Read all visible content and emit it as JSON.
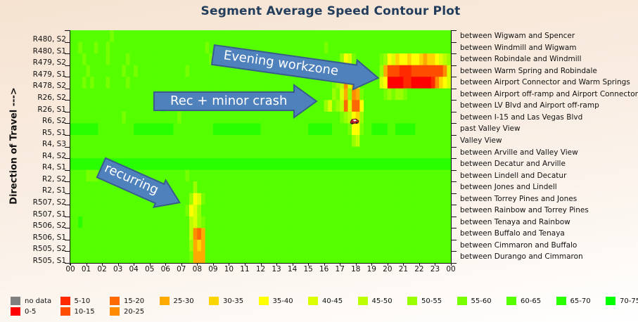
{
  "chart_data": {
    "type": "heatmap",
    "title": "Segment Average Speed Contour Plot",
    "ylabel": "Direction of Travel --->",
    "xlabel": "",
    "x_ticks": [
      "00",
      "01",
      "02",
      "03",
      "04",
      "05",
      "06",
      "07",
      "08",
      "09",
      "10",
      "11",
      "12",
      "13",
      "14",
      "15",
      "16",
      "17",
      "18",
      "19",
      "20",
      "21",
      "22",
      "23",
      "00"
    ],
    "x_resolution_minutes": 15,
    "rows_left": [
      "R480, S2",
      "R480, S1",
      "R479, S2",
      "R479, S1",
      "R478, S2",
      "R26, S2",
      "R26, S1",
      "R6, S2",
      "R5, S1",
      "R4, S3",
      "R4, S2",
      "R4, S1",
      "R2, S2",
      "R2, S1",
      "R507, S2",
      "R507, S1",
      "R506, S2",
      "R506, S1",
      "R505, S2",
      "R505, S1"
    ],
    "rows_right": [
      "between Wigwam and Spencer",
      "between Windmill and Wigwam",
      "between Robindale and Windmill",
      "between Warm Spring and Robindale",
      "between Airport Connector and Warm Springs",
      "between Airport off-ramp and Airport Connector",
      "between LV Blvd and Airport off-ramp",
      "between I-15 and Las Vegas Blvd",
      "past Valley View",
      "Valley View",
      "between Arville and Valley View",
      "between Decatur and Arville",
      "between Lindell and Decatur",
      "between Jones and Lindell",
      "between Torrey Pines and Jones",
      "between Rainbow and Torrey Pines",
      "between Tenaya and Rainbow",
      "between Buffalo and Tenaya",
      "between Cimmaron and Buffalo",
      "between Durango and Cimmaron"
    ],
    "bin_key": "0=no data,1=0-5,2=5-10,3=10-15,4=15-20,5=20-25,6=25-30,7=30-35,8=35-40,9=40-45,a=45-50,b=50-55,c=55-60,d=60-65,e=65-70,f=70-75",
    "speed_bins_by_6h_block": [
      [
        "ddddddddddcddddddddddddd",
        "dddddddddddddddddddddddd",
        "dddddddddddddddddddddddd",
        "dddddddddddddddddddddddd"
      ],
      [
        "ddcdddcddcdddddddddddddd",
        "ddddddddddcddddddddddddd",
        "ddddddddddddddddcddddddd",
        "dddddddddddddddddddddddd"
      ],
      [
        "dddcdddddcddddcddddddddd",
        "dddddddddddcdddddddddddd",
        "ddddddddddddddddddddb89c",
        "ddddddcb89788788767789ab"
      ],
      [
        "ddddcddddddddcddcddddddd",
        "dddddcdddddddddddddddddd",
        "dddddddddddddddddddd86a8",
        "dcddddb63332223333333359"
      ],
      [
        "dddcdcdddcddddcddddddddd",
        "dddddddddddddddddddddddd",
        "ddddddddddddddddddcba596",
        "8ddddd981111221111125789"
      ],
      [
        "dddddddddddddddddddddddd",
        "dddddddddddddddddddddddd",
        "ddddddddddddddddddbc96b5",
        "6cdddddcbcbbcddddddddddd"
      ],
      [
        "ddddddddddddddddddddddde",
        "dddddddddddddddddddddddd",
        "ddddddddddddddddb9cba494",
        "48dddddddddddddddddddddd"
      ],
      [
        "dddddddddddddcdddddddddd",
        "dddcdddddddddddddddddddd",
        "ddddddddddddddddddddcba8",
        "7bdddddddddddddddddddddd"
      ],
      [
        "eeeeeeedddddddddeeeeeeee",
        "eeddddddddddeeeeeeeeeeee",
        "ddddddddddddeeeeeeddddc8",
        "8cddeeeeddeeeeeddddddddd"
      ],
      [
        "dddddddddddddddddddddddd",
        "dddddddddddddddddddddddd",
        "dddddddddddddddddddddddb",
        "addddddddddddddddddddddd"
      ],
      [
        "dddddddddddddddddddddddd",
        "dddddddddddddddddddddddd",
        "dddddddddddddddddddddddd",
        "dddddddddddddddddddddddd"
      ],
      [
        "eeeeeeeeeeeeeeeeeeeeeeee",
        "eeeeeeeeeeeeeeeeeeeeeeee",
        "eeeeeeeeeeeeeeeeeeeeeeee",
        "eeeeeeeeeeeeeeeeeeeeeeee"
      ],
      [
        "ddddcccddddddddddddddddd",
        "dddddcdddddddddddddddddd",
        "dddddddddddddddddddddddd",
        "dddddddddddddddddddddddd"
      ],
      [
        "dddddddddddddddddddddddd",
        "dddddddbdddddddddddddddd",
        "dddddddddddddddddddddddd",
        "dddddddddddddddddddddddd"
      ],
      [
        "dddddddddddddddddddddddd",
        "ddddddb89cdddddddddddddd",
        "dddddddddddddddddddddddd",
        "dddddddddddddddddddddddd"
      ],
      [
        "dddddddddddddddddddddddd",
        "dddddc89bddddddddddddddd",
        "dddddddddddddddddddddddd",
        "dddddddddddddddddddddddd"
      ],
      [
        "ddeddddddddddddddddddddd",
        "dddddda9bcdddddddddddddd",
        "dddddddddddddddddddddddd",
        "dddddddddddddddddddddddd"
      ],
      [
        "dddddddddddddddddddddddd",
        "dddddda546dddddddddddddd",
        "dddddddddddddddddddddddd",
        "dddddddddddddddddddddddd"
      ],
      [
        "dddddddddddddddddddddddd",
        "ddddddb676dddddddddddddd",
        "dddddddddddddddddddddddd",
        "dddddddddddddddddddddddd"
      ],
      [
        "dddddddddddddddddddddddd",
        "ddddddc666dddddddddddddd",
        "dddddddddddddddddddddddd",
        "dddddddddddddddddddddddd"
      ]
    ],
    "legend": [
      {
        "code": "0",
        "label": "no data",
        "color": "#808080"
      },
      {
        "code": "1",
        "label": "0-5",
        "color": "#ff0000"
      },
      {
        "code": "2",
        "label": "5-10",
        "color": "#ff2a00"
      },
      {
        "code": "3",
        "label": "10-15",
        "color": "#ff4d00"
      },
      {
        "code": "4",
        "label": "15-20",
        "color": "#ff6a00"
      },
      {
        "code": "5",
        "label": "20-25",
        "color": "#ff8c00"
      },
      {
        "code": "6",
        "label": "25-30",
        "color": "#ffaa00"
      },
      {
        "code": "7",
        "label": "30-35",
        "color": "#ffd500"
      },
      {
        "code": "8",
        "label": "35-40",
        "color": "#ffff00"
      },
      {
        "code": "9",
        "label": "40-45",
        "color": "#d9ff00"
      },
      {
        "code": "a",
        "label": "45-50",
        "color": "#bbff00"
      },
      {
        "code": "b",
        "label": "50-55",
        "color": "#99ff00"
      },
      {
        "code": "c",
        "label": "55-60",
        "color": "#77ff00"
      },
      {
        "code": "d",
        "label": "60-65",
        "color": "#55ff00"
      },
      {
        "code": "e",
        "label": "65-70",
        "color": "#2aff00"
      },
      {
        "code": "f",
        "label": "70-75",
        "color": "#00ff00"
      }
    ],
    "annotations": {
      "evening": "Evening workzone",
      "crash": "Rec + minor crash",
      "recurring": "recurring"
    }
  },
  "colors": {
    "arrow_fill": "#4f81bd",
    "arrow_stroke": "#385d8a",
    "title": "#233d5c"
  }
}
